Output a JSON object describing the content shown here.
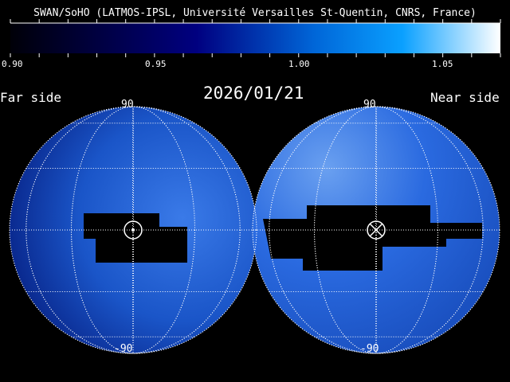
{
  "header": {
    "title": "SWAN/SoHO (LATMOS-IPSL, Université Versailles St-Quentin, CNRS, France)"
  },
  "colorbar": {
    "ticks": [
      "0.90",
      "0.95",
      "1.00",
      "1.05"
    ],
    "range": [
      0.9,
      1.07
    ],
    "colors": [
      "#000000",
      "#000080",
      "#0070e0",
      "#0aa0ff",
      "#ffffff"
    ]
  },
  "date": "2026/01/21",
  "labels": {
    "far_side": "Far side",
    "near_side": "Near side",
    "north": "90",
    "south": "-90"
  },
  "colors": {
    "sphere": "#1a5fd0",
    "grid": "#ffffff",
    "background": "#000000"
  }
}
